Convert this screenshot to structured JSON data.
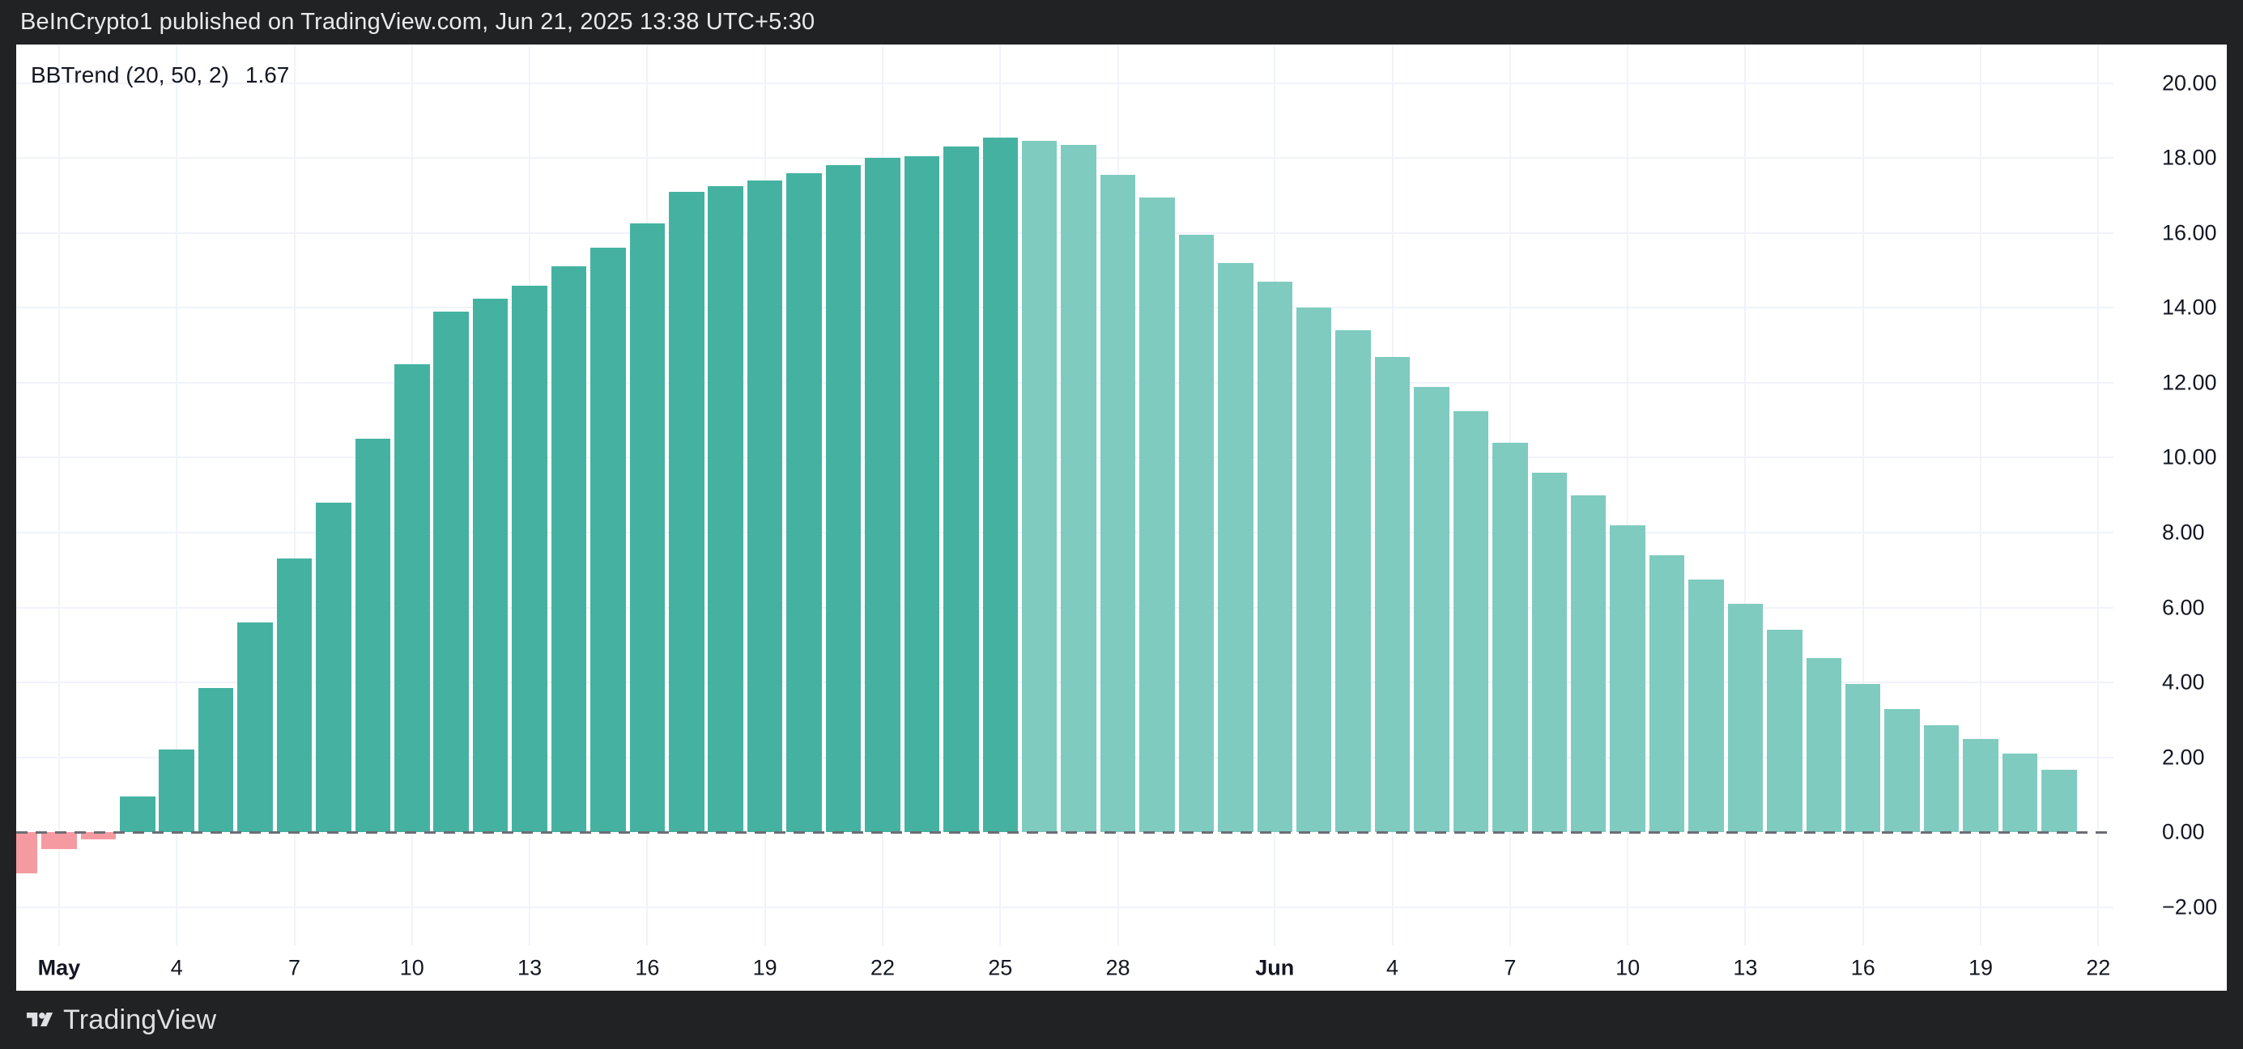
{
  "header": {
    "text": "BeInCrypto1 published on TradingView.com, Jun 21, 2025 13:38 UTC+5:30"
  },
  "footer": {
    "brand": "TradingView",
    "logo_icon": "tradingview-logo-icon",
    "bg": "#212224"
  },
  "indicator": {
    "name": "BBTrend (20, 50, 2)",
    "value": "1.67",
    "value_color": "#089981"
  },
  "chart_data": {
    "type": "bar",
    "title": "BBTrend (20, 50, 2)",
    "subtitle": "BBTrend histogram, current value 1.67",
    "grid": true,
    "legend_position": "top-left",
    "ylim": [
      -3.02,
      21.03
    ],
    "zero_line": {
      "style": "dashed",
      "color": "#6b6e75",
      "value": 0
    },
    "colors": {
      "pos": "#45b2a1",
      "fade": "#7fcbc0",
      "neg": "#f69aa1",
      "grid": "#f0f3fa",
      "axis_text": "#131722"
    },
    "y_axis": {
      "ticks": [
        {
          "v": 20,
          "label": "20.00"
        },
        {
          "v": 18,
          "label": "18.00"
        },
        {
          "v": 16,
          "label": "16.00"
        },
        {
          "v": 14,
          "label": "14.00"
        },
        {
          "v": 12,
          "label": "12.00"
        },
        {
          "v": 10,
          "label": "10.00"
        },
        {
          "v": 8,
          "label": "8.00"
        },
        {
          "v": 6,
          "label": "6.00"
        },
        {
          "v": 4,
          "label": "4.00"
        },
        {
          "v": 2,
          "label": "2.00"
        },
        {
          "v": 0,
          "label": "0.00"
        },
        {
          "v": -2,
          "label": "−2.00"
        }
      ]
    },
    "x_axis": {
      "ticks": [
        {
          "label": "May",
          "offset": 1,
          "bold": true
        },
        {
          "label": "4",
          "offset": 4,
          "bold": false
        },
        {
          "label": "7",
          "offset": 7,
          "bold": false
        },
        {
          "label": "10",
          "offset": 10,
          "bold": false
        },
        {
          "label": "13",
          "offset": 13,
          "bold": false
        },
        {
          "label": "16",
          "offset": 16,
          "bold": false
        },
        {
          "label": "19",
          "offset": 19,
          "bold": false
        },
        {
          "label": "22",
          "offset": 22,
          "bold": false
        },
        {
          "label": "25",
          "offset": 25,
          "bold": false
        },
        {
          "label": "28",
          "offset": 28,
          "bold": false
        },
        {
          "label": "Jun",
          "offset": 32,
          "bold": true
        },
        {
          "label": "4",
          "offset": 35,
          "bold": false
        },
        {
          "label": "7",
          "offset": 38,
          "bold": false
        },
        {
          "label": "10",
          "offset": 41,
          "bold": false
        },
        {
          "label": "13",
          "offset": 44,
          "bold": false
        },
        {
          "label": "16",
          "offset": 47,
          "bold": false
        },
        {
          "label": "19",
          "offset": 50,
          "bold": false
        },
        {
          "label": "22",
          "offset": 53,
          "bold": false
        }
      ]
    },
    "bars": [
      {
        "date": "Apr 30",
        "value": -1.1,
        "c": "neg"
      },
      {
        "date": "May 1",
        "value": -0.45,
        "c": "neg"
      },
      {
        "date": "May 2",
        "value": -0.2,
        "c": "neg"
      },
      {
        "date": "May 3",
        "value": 0.95,
        "c": "pos"
      },
      {
        "date": "May 4",
        "value": 2.2,
        "c": "pos"
      },
      {
        "date": "May 5",
        "value": 3.85,
        "c": "pos"
      },
      {
        "date": "May 6",
        "value": 5.6,
        "c": "pos"
      },
      {
        "date": "May 7",
        "value": 7.3,
        "c": "pos"
      },
      {
        "date": "May 8",
        "value": 8.8,
        "c": "pos"
      },
      {
        "date": "May 9",
        "value": 10.5,
        "c": "pos"
      },
      {
        "date": "May 10",
        "value": 12.5,
        "c": "pos"
      },
      {
        "date": "May 11",
        "value": 13.9,
        "c": "pos"
      },
      {
        "date": "May 12",
        "value": 14.25,
        "c": "pos"
      },
      {
        "date": "May 13",
        "value": 14.6,
        "c": "pos"
      },
      {
        "date": "May 14",
        "value": 15.1,
        "c": "pos"
      },
      {
        "date": "May 15",
        "value": 15.6,
        "c": "pos"
      },
      {
        "date": "May 16",
        "value": 16.25,
        "c": "pos"
      },
      {
        "date": "May 17",
        "value": 17.1,
        "c": "pos"
      },
      {
        "date": "May 18",
        "value": 17.25,
        "c": "pos"
      },
      {
        "date": "May 19",
        "value": 17.4,
        "c": "pos"
      },
      {
        "date": "May 20",
        "value": 17.6,
        "c": "pos"
      },
      {
        "date": "May 21",
        "value": 17.8,
        "c": "pos"
      },
      {
        "date": "May 22",
        "value": 18.0,
        "c": "pos"
      },
      {
        "date": "May 23",
        "value": 18.05,
        "c": "pos"
      },
      {
        "date": "May 24",
        "value": 18.3,
        "c": "pos"
      },
      {
        "date": "May 25",
        "value": 18.55,
        "c": "pos"
      },
      {
        "date": "May 26",
        "value": 18.45,
        "c": "fade"
      },
      {
        "date": "May 27",
        "value": 18.35,
        "c": "fade"
      },
      {
        "date": "May 28",
        "value": 17.55,
        "c": "fade"
      },
      {
        "date": "May 29",
        "value": 16.95,
        "c": "fade"
      },
      {
        "date": "May 30",
        "value": 15.95,
        "c": "fade"
      },
      {
        "date": "May 31",
        "value": 15.2,
        "c": "fade"
      },
      {
        "date": "Jun 1",
        "value": 14.7,
        "c": "fade"
      },
      {
        "date": "Jun 2",
        "value": 14.0,
        "c": "fade"
      },
      {
        "date": "Jun 3",
        "value": 13.4,
        "c": "fade"
      },
      {
        "date": "Jun 4",
        "value": 12.7,
        "c": "fade"
      },
      {
        "date": "Jun 5",
        "value": 11.9,
        "c": "fade"
      },
      {
        "date": "Jun 6",
        "value": 11.25,
        "c": "fade"
      },
      {
        "date": "Jun 7",
        "value": 10.4,
        "c": "fade"
      },
      {
        "date": "Jun 8",
        "value": 9.6,
        "c": "fade"
      },
      {
        "date": "Jun 9",
        "value": 9.0,
        "c": "fade"
      },
      {
        "date": "Jun 10",
        "value": 8.2,
        "c": "fade"
      },
      {
        "date": "Jun 11",
        "value": 7.4,
        "c": "fade"
      },
      {
        "date": "Jun 12",
        "value": 6.75,
        "c": "fade"
      },
      {
        "date": "Jun 13",
        "value": 6.1,
        "c": "fade"
      },
      {
        "date": "Jun 14",
        "value": 5.4,
        "c": "fade"
      },
      {
        "date": "Jun 15",
        "value": 4.65,
        "c": "fade"
      },
      {
        "date": "Jun 16",
        "value": 3.95,
        "c": "fade"
      },
      {
        "date": "Jun 17",
        "value": 3.3,
        "c": "fade"
      },
      {
        "date": "Jun 18",
        "value": 2.85,
        "c": "fade"
      },
      {
        "date": "Jun 19",
        "value": 2.5,
        "c": "fade"
      },
      {
        "date": "Jun 20",
        "value": 2.1,
        "c": "fade"
      },
      {
        "date": "Jun 21",
        "value": 1.67,
        "c": "fade"
      }
    ]
  }
}
